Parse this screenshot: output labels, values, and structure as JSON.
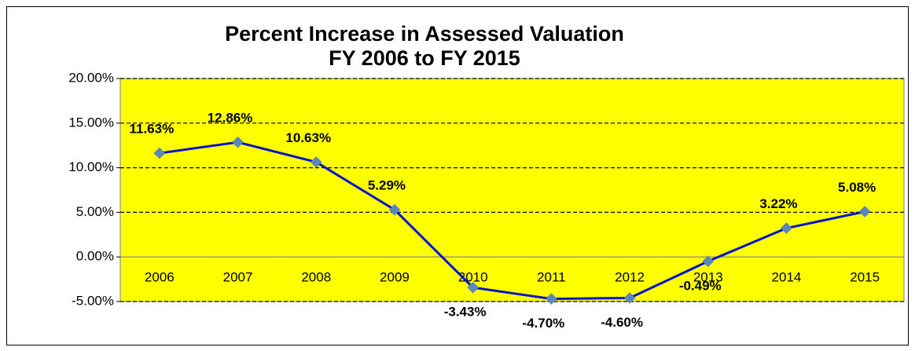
{
  "chart_data": {
    "type": "line",
    "title": "Percent  Increase in Assessed Valuation",
    "subtitle": "FY 2006 to FY 2015",
    "categories": [
      "2006",
      "2007",
      "2008",
      "2009",
      "2010",
      "2011",
      "2012",
      "2013",
      "2014",
      "2015"
    ],
    "values": [
      11.63,
      12.86,
      10.63,
      5.29,
      -3.43,
      -4.7,
      -4.6,
      -0.49,
      3.22,
      5.08
    ],
    "value_labels": [
      "11.63%",
      "12.86%",
      "10.63%",
      "5.29%",
      "-3.43%",
      "-4.70%",
      "-4.60%",
      "-0.49%",
      "3.22%",
      "5.08%"
    ],
    "color": "#0a14c8",
    "marker_color": "#5b87c0",
    "plot_background": "#ffff00",
    "ylim": [
      -5,
      20
    ],
    "yticks": [
      {
        "value": -5,
        "label": "-5.00%"
      },
      {
        "value": 0,
        "label": "0.00%"
      },
      {
        "value": 5,
        "label": "5.00%"
      },
      {
        "value": 10,
        "label": "10.00%"
      },
      {
        "value": 15,
        "label": "15.00%"
      },
      {
        "value": 20,
        "label": "20.00%"
      }
    ],
    "grid": true
  }
}
